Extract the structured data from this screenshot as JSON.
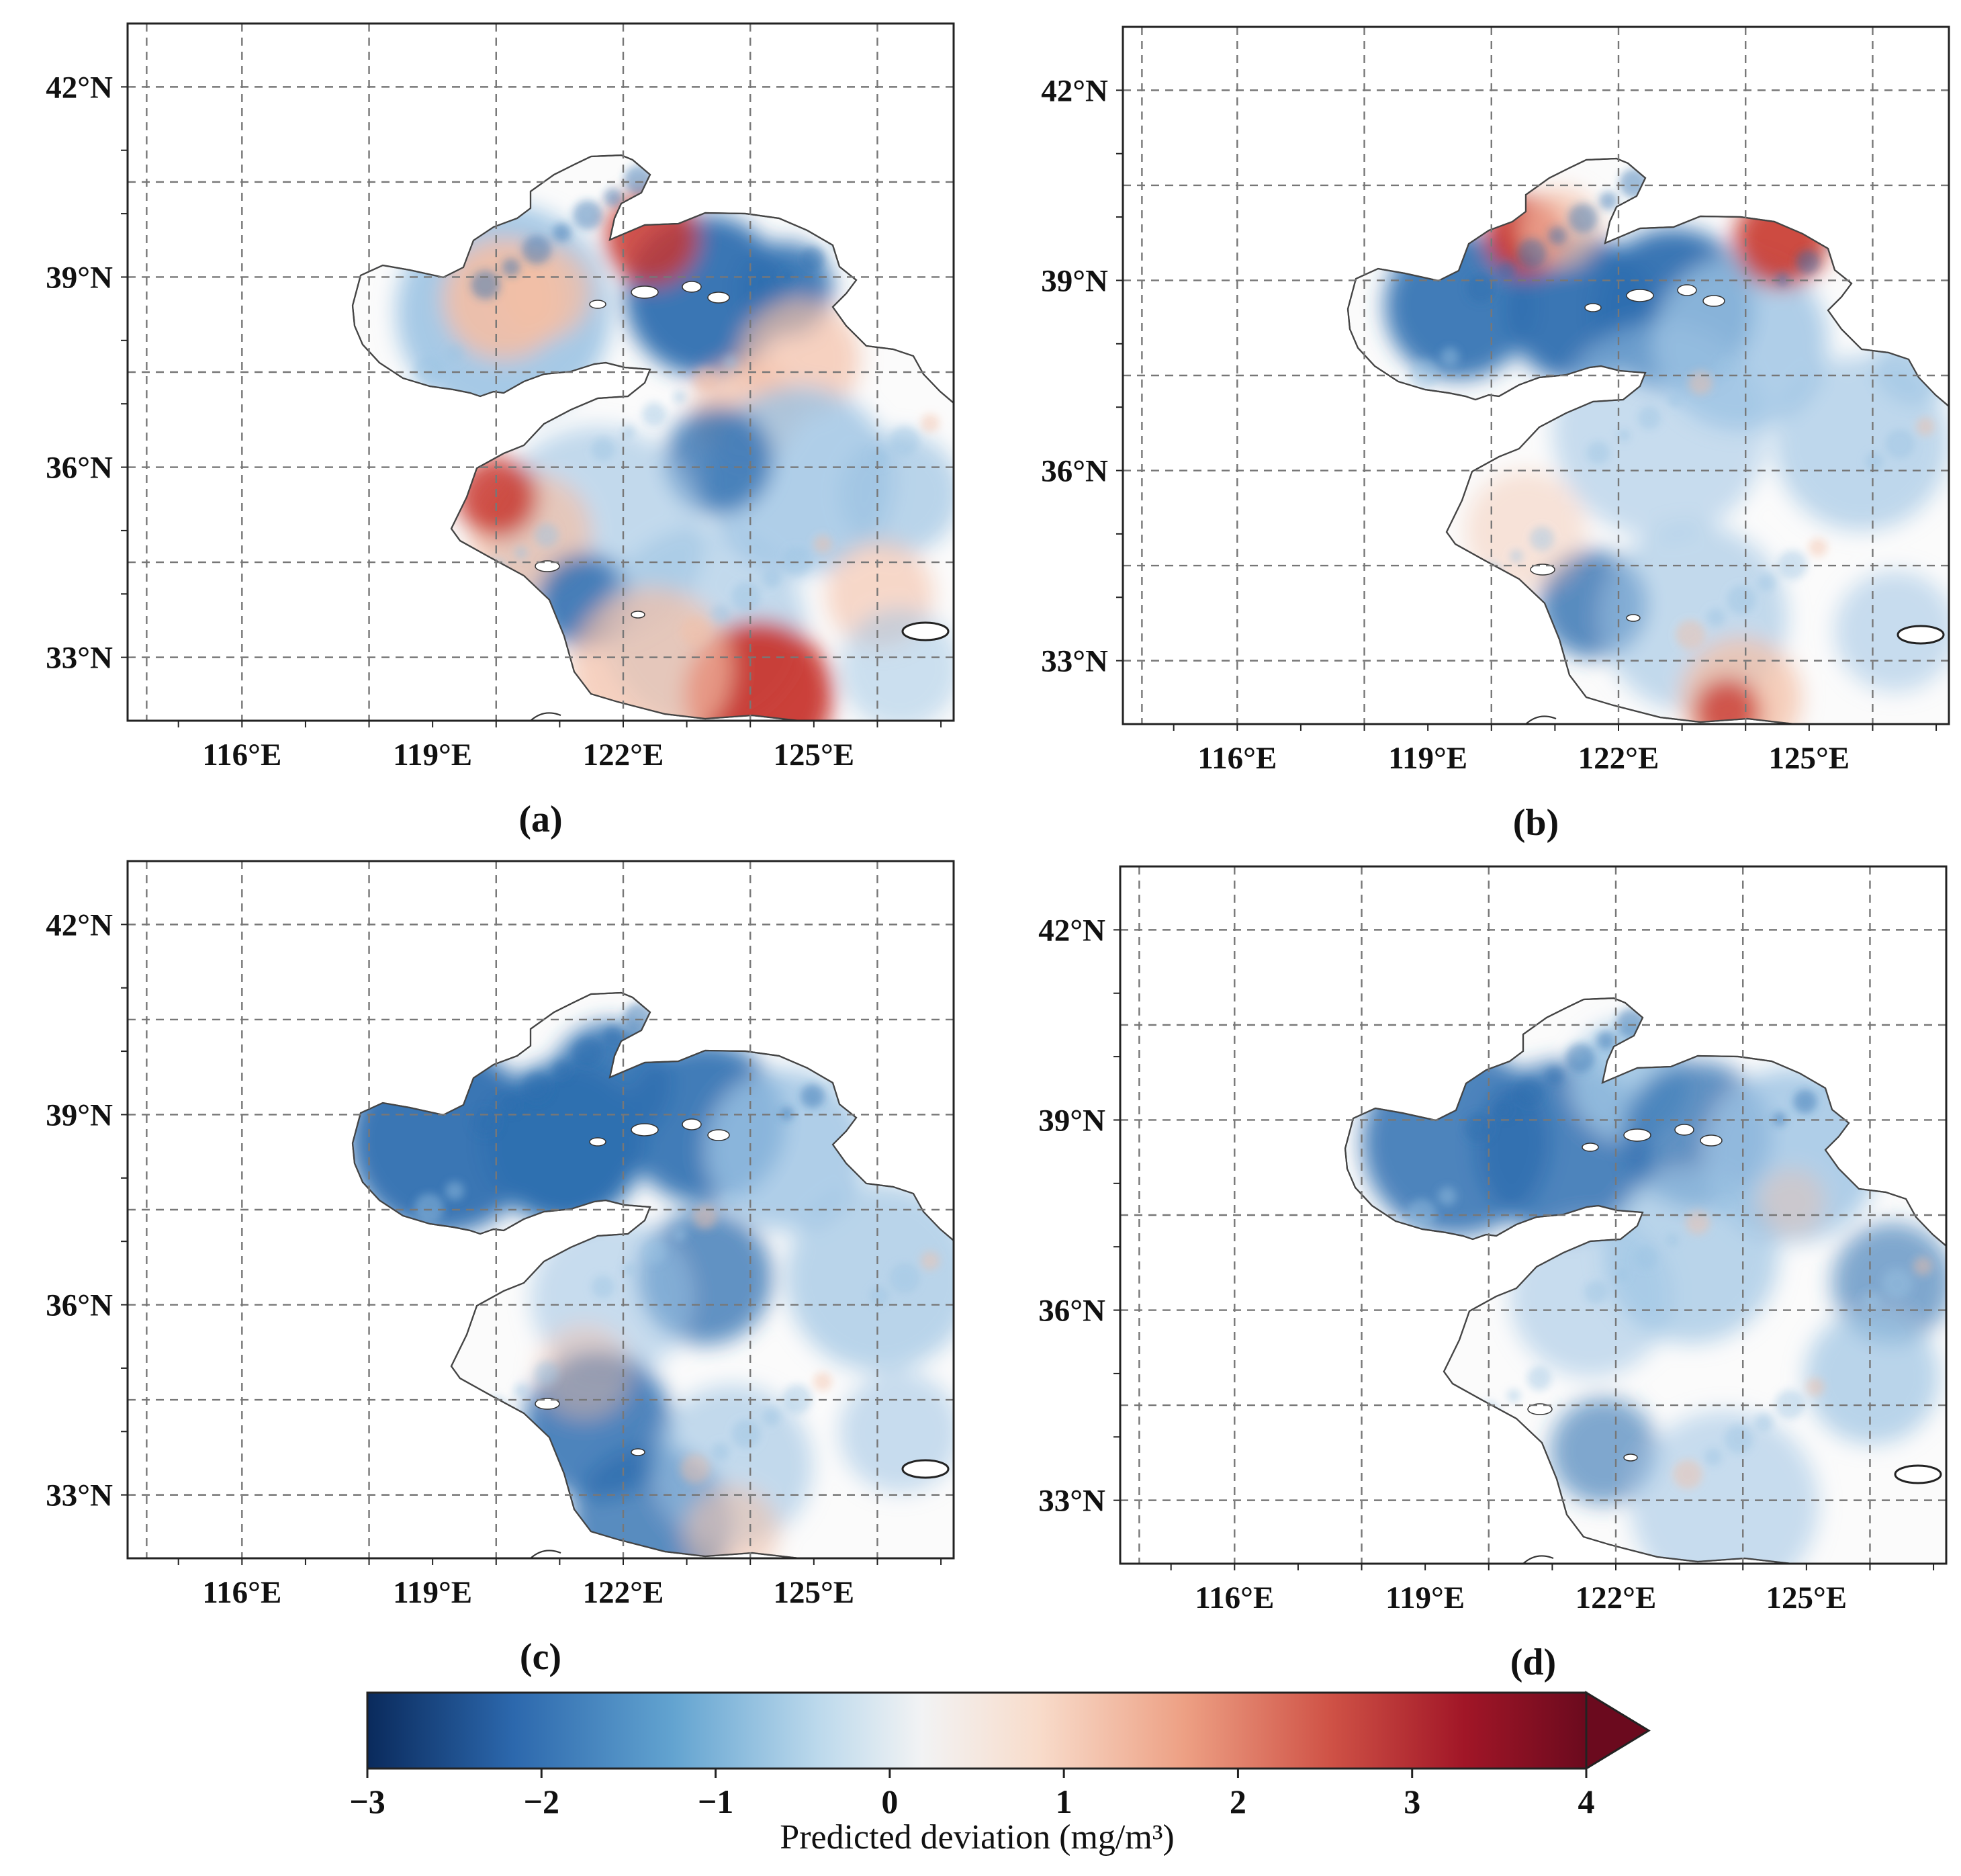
{
  "figure": {
    "colors": {
      "strong_negative": "#2f6fb0",
      "weak_negative": "#9cc3e3",
      "near_zero": "#f5f6f7",
      "weak_positive": "#f3bfa6",
      "strong_positive": "#c8372f"
    },
    "panels": [
      {
        "label": "(a)",
        "lat_ticks": [
          "42°N",
          "39°N",
          "36°N",
          "33°N"
        ],
        "lon_ticks": [
          "116°E",
          "119°E",
          "122°E",
          "125°E"
        ],
        "pattern": "mixed"
      },
      {
        "label": "(b)",
        "lat_ticks": [
          "42°N",
          "39°N",
          "36°N",
          "33°N"
        ],
        "lon_ticks": [
          "116°E",
          "119°E",
          "122°E",
          "125°E"
        ],
        "pattern": "mostly_negative_with_north_positive"
      },
      {
        "label": "(c)",
        "lat_ticks": [
          "42°N",
          "39°N",
          "36°N",
          "33°N"
        ],
        "lon_ticks": [
          "116°E",
          "119°E",
          "122°E",
          "125°E"
        ],
        "pattern": "negative"
      },
      {
        "label": "(d)",
        "lat_ticks": [
          "42°N",
          "39°N",
          "36°N",
          "33°N"
        ],
        "lon_ticks": [
          "116°E",
          "119°E",
          "122°E",
          "125°E"
        ],
        "pattern": "negative_light"
      }
    ],
    "colorbar": {
      "min": -3,
      "max": 4,
      "ticks": [
        "−3",
        "−2",
        "−1",
        "0",
        "1",
        "2",
        "3",
        "4"
      ],
      "label": "Predicted deviation (mg/m³)",
      "extend": "max"
    }
  }
}
